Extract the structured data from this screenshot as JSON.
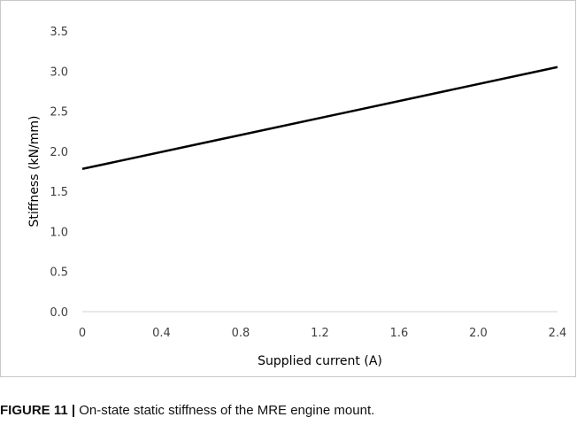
{
  "chart_data": {
    "type": "line",
    "xlabel": "Supplied current (A)",
    "ylabel": "Stiffness (kN/mm)",
    "xlim": [
      0,
      2.4
    ],
    "ylim": [
      0,
      3.5
    ],
    "x_ticks": [
      "0",
      "0.4",
      "0.8",
      "1.2",
      "1.6",
      "2.0",
      "2.4"
    ],
    "y_ticks": [
      "0.0",
      "0.5",
      "1.0",
      "1.5",
      "2.0",
      "2.5",
      "3.0",
      "3.5"
    ],
    "grid": false,
    "series": [
      {
        "x": [
          0,
          2.4
        ],
        "y": [
          1.78,
          3.05
        ],
        "color": "#000000"
      }
    ]
  },
  "caption": {
    "label": "FIGURE 11 |",
    "text": " On-state static stiffness of the MRE engine mount."
  }
}
